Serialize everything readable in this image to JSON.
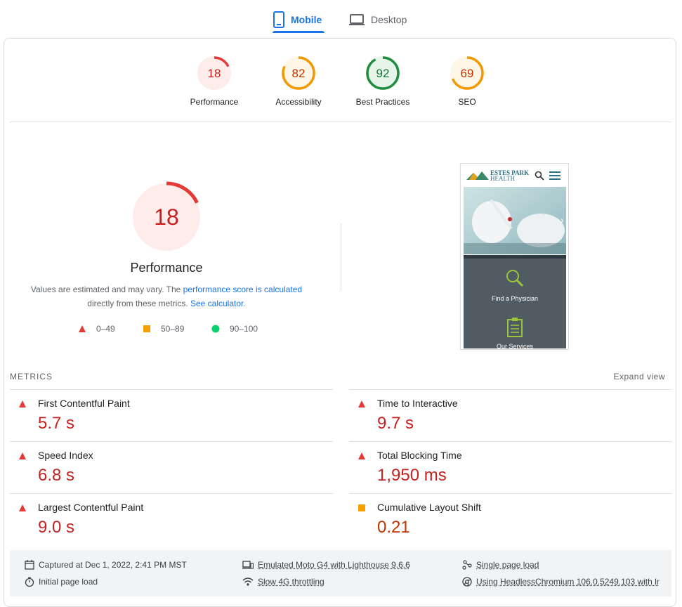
{
  "tabs": {
    "mobile": "Mobile",
    "desktop": "Desktop"
  },
  "categories": [
    {
      "score": "18",
      "label": "Performance",
      "fraction": 0.18,
      "color": "#e53935",
      "bg": "#fdecea"
    },
    {
      "score": "82",
      "label": "Accessibility",
      "fraction": 0.82,
      "color": "#f29900",
      "bg": "#fef6e7"
    },
    {
      "score": "92",
      "label": "Best Practices",
      "fraction": 0.92,
      "color": "#1e8e3e",
      "bg": "#e6f4ea"
    },
    {
      "score": "69",
      "label": "SEO",
      "fraction": 0.69,
      "color": "#f29900",
      "bg": "#fef6e7"
    }
  ],
  "performance": {
    "score": "18",
    "fraction": 0.18,
    "title": "Performance",
    "desc_prefix": "Values are estimated and may vary. The ",
    "desc_link1": "performance score is calculated",
    "desc_mid": "directly from these metrics. ",
    "desc_link2": "See calculator",
    "desc_suffix": "."
  },
  "legend": {
    "fail": "0–49",
    "average": "50–89",
    "pass": "90–100"
  },
  "screenshot": {
    "brand_line1": "ESTES PARK",
    "brand_line2": "HEALTH",
    "tile1": "Find a Physician",
    "tile2": "Our Services"
  },
  "metrics_header": "METRICS",
  "expand_view": "Expand view",
  "metrics": [
    {
      "name": "First Contentful Paint",
      "value": "5.7 s",
      "status": "fail"
    },
    {
      "name": "Time to Interactive",
      "value": "9.7 s",
      "status": "fail"
    },
    {
      "name": "Speed Index",
      "value": "6.8 s",
      "status": "fail"
    },
    {
      "name": "Total Blocking Time",
      "value": "1,950 ms",
      "status": "fail"
    },
    {
      "name": "Largest Contentful Paint",
      "value": "9.0 s",
      "status": "fail"
    },
    {
      "name": "Cumulative Layout Shift",
      "value": "0.21",
      "status": "average"
    }
  ],
  "footer": {
    "captured": "Captured at Dec 1, 2022, 2:41 PM MST",
    "initial": "Initial page load",
    "device": "Emulated Moto G4 with Lighthouse 9.6.6",
    "throttle": "Slow 4G throttling",
    "single": "Single page load",
    "browser": "Using HeadlessChromium 106.0.5249.103 with lr"
  },
  "colors": {
    "fail": "#c5221f",
    "fail_icon": "#e53935",
    "average": "#c33300",
    "average_icon": "#f4a100",
    "pass_icon": "#0cce6b",
    "link": "#1a73e8"
  }
}
